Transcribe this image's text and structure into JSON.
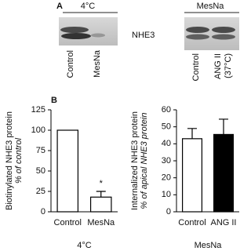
{
  "panel_a": {
    "panel_label": "A",
    "left_condition": "4°C",
    "right_condition": "MesNa",
    "protein": "NHE3",
    "left_lanes": [
      "Control",
      "MesNa"
    ],
    "right_lanes": [
      "Control",
      "ANG II",
      "(37°C)"
    ]
  },
  "chart_data": [
    {
      "type": "bar",
      "panel_label": "B",
      "ylabel": "Biotinylated NHE3 protein",
      "ylabel_sub": "% of control",
      "xlabel": "4°C",
      "categories": [
        "Control",
        "MesNa"
      ],
      "values": [
        100,
        18
      ],
      "errors": [
        null,
        7
      ],
      "colors": [
        "#ffffff",
        "#ffffff"
      ],
      "annotation": "*",
      "ylim": [
        0,
        125
      ],
      "yticks": [
        0,
        25,
        50,
        75,
        100,
        125
      ]
    },
    {
      "type": "bar",
      "ylabel": "Internalized NHE3 protein",
      "ylabel_sub": "% of apical NHE3 protein",
      "xlabel": "MesNa",
      "categories": [
        "Control",
        "ANG II"
      ],
      "values": [
        43,
        45.5
      ],
      "errors": [
        6,
        9
      ],
      "colors": [
        "#ffffff",
        "#000000"
      ],
      "ylim": [
        0,
        60
      ],
      "yticks": [
        0,
        10,
        20,
        30,
        40,
        50,
        60
      ]
    }
  ]
}
